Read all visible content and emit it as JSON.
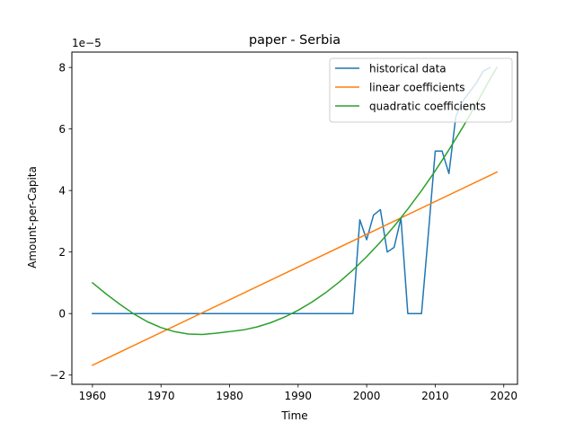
{
  "chart_data": {
    "type": "line",
    "title": "paper - Serbia",
    "xlabel": "Time",
    "ylabel": "Amount-per-Capita",
    "y_scale_label": "1e−5",
    "xlim": [
      1957,
      2022
    ],
    "ylim": [
      -2.3,
      8.5
    ],
    "xticks": [
      1960,
      1970,
      1980,
      1990,
      2000,
      2010,
      2020
    ],
    "yticks": [
      -2,
      0,
      2,
      4,
      6,
      8
    ],
    "ytick_labels": [
      "−2",
      "0",
      "2",
      "4",
      "6",
      "8"
    ],
    "legend_position": "top-right",
    "grid": false,
    "series": [
      {
        "name": "historical data",
        "color": "#1f77b4",
        "x": [
          1960,
          1961,
          1962,
          1963,
          1964,
          1965,
          1966,
          1967,
          1968,
          1969,
          1970,
          1971,
          1972,
          1973,
          1974,
          1975,
          1976,
          1977,
          1978,
          1979,
          1980,
          1981,
          1982,
          1983,
          1984,
          1985,
          1986,
          1987,
          1988,
          1989,
          1990,
          1991,
          1992,
          1993,
          1994,
          1995,
          1996,
          1997,
          1998,
          1999,
          2000,
          2001,
          2002,
          2003,
          2004,
          2005,
          2006,
          2007,
          2008,
          2009,
          2010,
          2011,
          2012,
          2013,
          2014,
          2015,
          2016,
          2017,
          2018
        ],
        "y": [
          0,
          0,
          0,
          0,
          0,
          0,
          0,
          0,
          0,
          0,
          0,
          0,
          0,
          0,
          0,
          0,
          0,
          0,
          0,
          0,
          0,
          0,
          0,
          0,
          0,
          0,
          0,
          0,
          0,
          0,
          0,
          0,
          0,
          0,
          0,
          0,
          0,
          0,
          0,
          3.05,
          2.4,
          3.2,
          3.38,
          2.0,
          2.15,
          3.1,
          0,
          0,
          0,
          2.6,
          5.28,
          5.28,
          4.55,
          6.4,
          6.9,
          7.2,
          7.5,
          7.88,
          8.0
        ]
      },
      {
        "name": "linear coefficients",
        "color": "#ff7f0e",
        "x": [
          1960,
          2019
        ],
        "y": [
          -1.68,
          4.6
        ]
      },
      {
        "name": "quadratic coefficients",
        "color": "#2ca02c",
        "x": [
          1960,
          1962,
          1964,
          1966,
          1968,
          1970,
          1972,
          1974,
          1976,
          1978,
          1980,
          1982,
          1984,
          1986,
          1988,
          1990,
          1992,
          1994,
          1996,
          1998,
          2000,
          2002,
          2004,
          2006,
          2008,
          2010,
          2012,
          2014,
          2016,
          2018,
          2019
        ],
        "y": [
          1.0,
          0.637,
          0.302,
          -0.007,
          -0.264,
          -0.455,
          -0.59,
          -0.667,
          -0.68,
          -0.64,
          -0.587,
          -0.532,
          -0.436,
          -0.297,
          -0.117,
          0.106,
          0.37,
          0.676,
          1.025,
          1.415,
          1.848,
          2.322,
          2.838,
          3.397,
          3.997,
          4.639,
          5.324,
          6.05,
          6.818,
          7.629,
          8.0
        ]
      }
    ]
  }
}
